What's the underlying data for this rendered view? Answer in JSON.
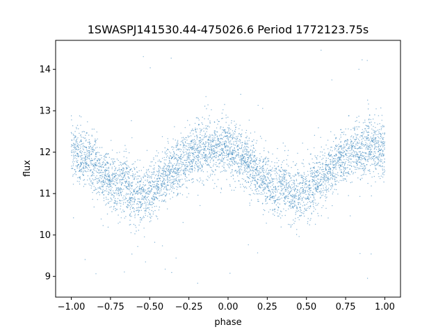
{
  "chart_data": {
    "type": "scatter",
    "title": "1SWASPJ141530.44-475026.6 Period 1772123.75s",
    "xlabel": "phase",
    "ylabel": "flux",
    "xlim": [
      -1.1,
      1.1
    ],
    "ylim": [
      8.5,
      14.7
    ],
    "xticks": [
      -1.0,
      -0.75,
      -0.5,
      -0.25,
      0.0,
      0.25,
      0.5,
      0.75,
      1.0
    ],
    "xtick_labels": [
      "−1.00",
      "−0.75",
      "−0.50",
      "−0.25",
      "0.00",
      "0.25",
      "0.50",
      "0.75",
      "1.00"
    ],
    "yticks": [
      9,
      10,
      11,
      12,
      13,
      14
    ],
    "ytick_labels": [
      "9",
      "10",
      "11",
      "12",
      "13",
      "14"
    ],
    "grid": false,
    "legend": "none",
    "point_color": "#1f77b4",
    "series": [
      {
        "profile_phase": [
          -1.0,
          -0.9,
          -0.8,
          -0.7,
          -0.65,
          -0.6,
          -0.5,
          -0.4,
          -0.3,
          -0.2,
          -0.1,
          0.0,
          0.1,
          0.2,
          0.3,
          0.35,
          0.4,
          0.5,
          0.6,
          0.7,
          0.8,
          0.9,
          1.0
        ],
        "profile_flux": [
          12.0,
          11.85,
          11.45,
          11.1,
          11.3,
          10.95,
          11.05,
          11.35,
          11.8,
          12.0,
          12.1,
          12.15,
          11.85,
          11.45,
          11.1,
          11.3,
          10.95,
          11.05,
          11.35,
          11.8,
          12.0,
          12.1,
          12.15
        ],
        "scatter_sd": 0.35,
        "outlier_range": [
          8.8,
          14.5
        ]
      }
    ]
  }
}
